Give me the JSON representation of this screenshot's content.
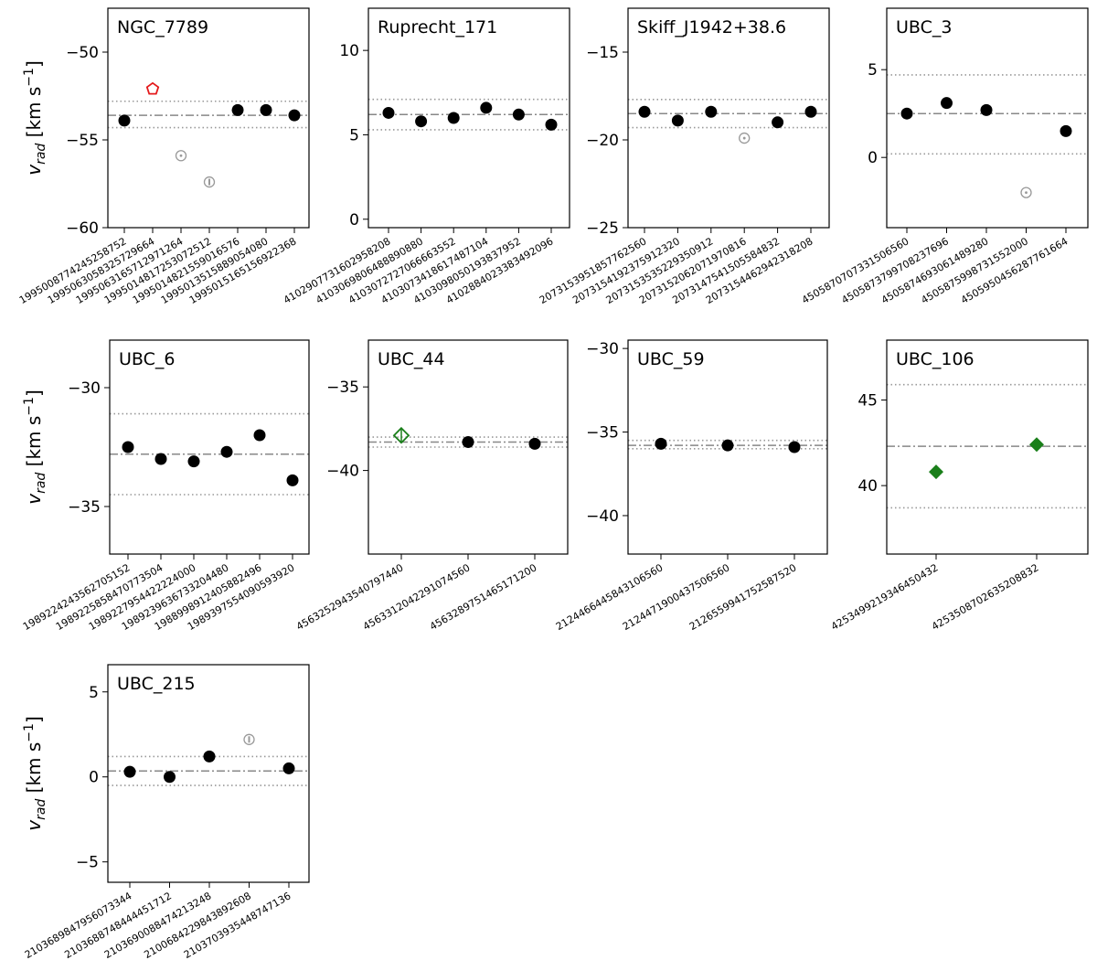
{
  "ylabel": "v_rad [km s⁻¹]",
  "ylabel_parts": {
    "v": "v",
    "sub": "rad",
    "unit": " [km s",
    "sup": "−1",
    "close": "]"
  },
  "colors": {
    "member": "#000000",
    "outlier": "#999999",
    "binary": "#e41a1c",
    "green": "#1a7f1a",
    "mean_line": "#888888",
    "sigma_line": "#999999"
  },
  "chart_data": [
    {
      "type": "scatter",
      "title": "NGC_7789",
      "ylim": [
        -60,
        -47.5
      ],
      "yticks": [
        -60,
        -55,
        -50
      ],
      "mean": -53.6,
      "band": [
        -54.3,
        -52.8
      ],
      "categories": [
        "1995008774245258752",
        "1995063058325729664",
        "1995063165712971264",
        "1995014817253072512",
        "1995014821559016576",
        "1995013515889054080",
        "1995015165156922368"
      ],
      "values": [
        -53.9,
        -52.1,
        -55.9,
        -57.4,
        -53.3,
        -53.3,
        -53.6
      ],
      "markers": [
        "member",
        "binary",
        "outlier",
        "outlier_bar",
        "member",
        "member",
        "member"
      ]
    },
    {
      "type": "scatter",
      "title": "Ruprecht_171",
      "ylim": [
        -0.5,
        12.5
      ],
      "yticks": [
        0,
        5,
        10
      ],
      "mean": 6.2,
      "band": [
        5.3,
        7.1
      ],
      "categories": [
        "4102907731602958208",
        "4103069806488890880",
        "4103072727066663552",
        "4103073418617487104",
        "4103098050193837952",
        "4102884023383492096"
      ],
      "values": [
        6.3,
        5.8,
        6.0,
        6.6,
        6.2,
        5.6
      ],
      "markers": [
        "member",
        "member",
        "member",
        "member",
        "member",
        "member"
      ]
    },
    {
      "type": "scatter",
      "title": "Skiff_J1942+38.6",
      "ylim": [
        -25,
        -12.5
      ],
      "yticks": [
        -25,
        -20,
        -15
      ],
      "mean": -18.5,
      "band": [
        -19.3,
        -17.7
      ],
      "categories": [
        "2073153951857762560",
        "2073154192375912320",
        "2073153535229350912",
        "2073152062071970816",
        "2073147541505584832",
        "2073154462942318208"
      ],
      "values": [
        -18.4,
        -18.9,
        -18.4,
        -19.9,
        -19.0,
        -18.4
      ],
      "markers": [
        "member",
        "member",
        "member",
        "outlier",
        "member",
        "member"
      ]
    },
    {
      "type": "scatter",
      "title": "UBC_3",
      "ylim": [
        -4,
        8.5
      ],
      "yticks": [
        0,
        5
      ],
      "mean": 2.5,
      "band": [
        0.2,
        4.7
      ],
      "categories": [
        "4505870707331506560",
        "4505873799708237696",
        "4505874693061489280",
        "4505875998731552000",
        "4505950456287761664"
      ],
      "values": [
        2.5,
        3.1,
        2.7,
        -2.0,
        1.5
      ],
      "markers": [
        "member",
        "member",
        "member",
        "outlier",
        "member"
      ]
    },
    {
      "type": "scatter",
      "title": "UBC_6",
      "ylim": [
        -37,
        -28
      ],
      "yticks": [
        -35,
        -30
      ],
      "mean": -32.8,
      "band": [
        -34.5,
        -31.1
      ],
      "categories": [
        "1989224243562705152",
        "1989225858470773504",
        "1989227954422224000",
        "1989239636733204480",
        "1988998912405882496",
        "1989397554090593920"
      ],
      "values": [
        -32.5,
        -33.0,
        -33.1,
        -32.7,
        -32.0,
        -33.9
      ],
      "markers": [
        "member",
        "member",
        "member",
        "member",
        "member",
        "member"
      ]
    },
    {
      "type": "scatter",
      "title": "UBC_44",
      "ylim": [
        -45,
        -32.2
      ],
      "yticks": [
        -40,
        -35
      ],
      "mean": -38.3,
      "band": [
        -38.6,
        -38.0
      ],
      "categories": [
        "4563252943540797440",
        "4563312042291074560",
        "4563289751465171200"
      ],
      "values": [
        -37.9,
        -38.3,
        -38.4
      ],
      "markers": [
        "green_open",
        "member",
        "member"
      ]
    },
    {
      "type": "scatter",
      "title": "UBC_59",
      "ylim": [
        -42.3,
        -29.5
      ],
      "yticks": [
        -40,
        -35,
        -30
      ],
      "mean": -35.8,
      "band": [
        -36.0,
        -35.5
      ],
      "categories": [
        "2124466445843106560",
        "2124471900437506560",
        "2126559941752587520"
      ],
      "values": [
        -35.7,
        -35.8,
        -35.9
      ],
      "markers": [
        "member",
        "member",
        "member"
      ]
    },
    {
      "type": "scatter",
      "title": "UBC_106",
      "ylim": [
        36,
        48.5
      ],
      "yticks": [
        40,
        45
      ],
      "mean": 42.3,
      "band": [
        38.7,
        45.9
      ],
      "categories": [
        "4253499219346450432",
        "4253508702635208832"
      ],
      "values": [
        40.8,
        42.4
      ],
      "markers": [
        "green_filled",
        "green_filled"
      ]
    },
    {
      "type": "scatter",
      "title": "UBC_215",
      "ylim": [
        -6.2,
        6.6
      ],
      "yticks": [
        -5,
        0,
        5
      ],
      "mean": 0.35,
      "band": [
        -0.5,
        1.2
      ],
      "categories": [
        "2103689847956073344",
        "2103688748444451712",
        "2103690088474213248",
        "2100684229843892608",
        "2103703935448747136"
      ],
      "values": [
        0.3,
        0.0,
        1.2,
        2.2,
        0.5
      ],
      "markers": [
        "member",
        "member",
        "member",
        "outlier_bar",
        "member"
      ]
    }
  ]
}
